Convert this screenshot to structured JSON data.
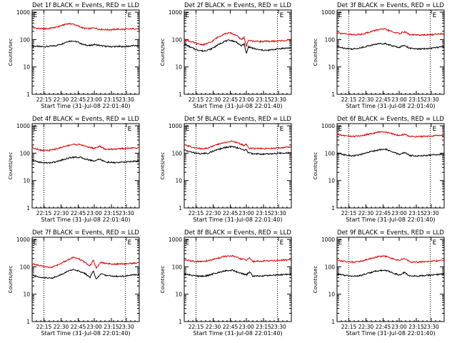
{
  "colors": {
    "events": "#000000",
    "lld": "#e00000",
    "axes": "#000000"
  },
  "common": {
    "xlabel": "Start Time (31-Jul-08 22:01:40)",
    "ylabel": "Counts/sec",
    "yticks": [
      {
        "value": 1,
        "label": "1"
      },
      {
        "value": 10,
        "label": "10"
      },
      {
        "value": 100,
        "label": "100"
      },
      {
        "value": 1000,
        "label": "1000"
      }
    ],
    "ylim": [
      1,
      1200
    ],
    "xlim": [
      0,
      100
    ],
    "markers": [
      {
        "label": "E",
        "x": 3
      },
      {
        "label": "E",
        "x": 91
      }
    ],
    "dotted_lines": [
      11,
      87
    ]
  },
  "chart_data": [
    {
      "type": "line",
      "title": "Det 1f BLACK = Events, RED = LLD",
      "xtick_labels": [
        "22:15",
        "22:30",
        "22:45",
        "23:00",
        "23:15",
        "23:30"
      ],
      "xtick_positions": [
        11,
        27,
        43,
        58,
        74,
        88
      ],
      "series": [
        {
          "key": "events",
          "x": [
            0,
            8,
            15,
            22,
            28,
            33,
            38,
            43,
            48,
            54,
            58,
            62,
            66,
            70,
            75,
            80,
            85,
            90,
            95,
            100
          ],
          "y": [
            58,
            55,
            56,
            60,
            70,
            85,
            90,
            80,
            65,
            60,
            66,
            62,
            58,
            56,
            55,
            56,
            55,
            57,
            60,
            58
          ]
        },
        {
          "key": "lld",
          "x": [
            0,
            8,
            15,
            22,
            28,
            33,
            38,
            43,
            48,
            54,
            58,
            62,
            66,
            70,
            75,
            80,
            85,
            90,
            95,
            100
          ],
          "y": [
            270,
            250,
            250,
            280,
            330,
            380,
            370,
            310,
            260,
            250,
            270,
            240,
            235,
            230,
            230,
            240,
            235,
            240,
            250,
            245
          ]
        }
      ]
    },
    {
      "type": "line",
      "title": "Det 2f BLACK = Events, RED = LLD",
      "xtick_labels": [
        "22:15",
        "22:30",
        "22:45",
        "23:00",
        "23:15",
        "23:30"
      ],
      "xtick_positions": [
        11,
        27,
        43,
        58,
        74,
        88
      ],
      "series": [
        {
          "key": "events",
          "x": [
            0,
            6,
            12,
            18,
            25,
            31,
            37,
            43,
            49,
            53,
            56,
            58,
            60,
            64,
            70,
            78,
            86,
            93,
            100
          ],
          "y": [
            70,
            52,
            42,
            38,
            45,
            62,
            85,
            95,
            80,
            58,
            70,
            30,
            55,
            48,
            42,
            40,
            45,
            48,
            50
          ]
        },
        {
          "key": "lld",
          "x": [
            0,
            6,
            12,
            18,
            25,
            31,
            37,
            43,
            49,
            53,
            56,
            58,
            60,
            64,
            70,
            78,
            86,
            93,
            100
          ],
          "y": [
            100,
            85,
            70,
            65,
            80,
            120,
            160,
            175,
            140,
            100,
            120,
            55,
            95,
            88,
            85,
            86,
            88,
            92,
            95
          ]
        }
      ]
    },
    {
      "type": "line",
      "title": "Det 3f BLACK = Events, RED = LLD",
      "xtick_labels": [
        "22:15",
        "22:30",
        "22:45",
        "23:00",
        "23:15",
        "23:30"
      ],
      "xtick_positions": [
        11,
        27,
        43,
        58,
        74,
        88
      ],
      "series": [
        {
          "key": "events",
          "x": [
            0,
            8,
            15,
            22,
            30,
            38,
            45,
            52,
            58,
            63,
            68,
            75,
            82,
            88,
            94,
            100
          ],
          "y": [
            55,
            48,
            45,
            50,
            60,
            70,
            72,
            58,
            52,
            62,
            48,
            45,
            46,
            48,
            52,
            55
          ]
        },
        {
          "key": "lld",
          "x": [
            0,
            8,
            15,
            22,
            30,
            38,
            45,
            52,
            58,
            63,
            68,
            75,
            82,
            88,
            94,
            100
          ],
          "y": [
            180,
            160,
            150,
            155,
            185,
            230,
            240,
            190,
            165,
            195,
            150,
            145,
            148,
            150,
            160,
            165
          ]
        }
      ]
    },
    {
      "type": "line",
      "title": "Det 4f BLACK = Events, RED = LLD",
      "xtick_labels": [
        "22:15",
        "22:30",
        "22:45",
        "23:00",
        "23:15",
        "23:30"
      ],
      "xtick_positions": [
        11,
        27,
        43,
        58,
        74,
        88
      ],
      "series": [
        {
          "key": "events",
          "x": [
            0,
            8,
            15,
            22,
            30,
            38,
            45,
            52,
            58,
            63,
            68,
            75,
            82,
            88,
            94,
            100
          ],
          "y": [
            55,
            46,
            44,
            48,
            60,
            72,
            70,
            58,
            52,
            62,
            48,
            45,
            46,
            48,
            50,
            52
          ]
        },
        {
          "key": "lld",
          "x": [
            0,
            8,
            15,
            22,
            30,
            38,
            45,
            52,
            58,
            63,
            68,
            75,
            82,
            88,
            94,
            100
          ],
          "y": [
            160,
            130,
            125,
            140,
            175,
            210,
            205,
            170,
            150,
            180,
            140,
            140,
            145,
            150,
            155,
            160
          ]
        }
      ]
    },
    {
      "type": "line",
      "title": "Det 5f BLACK = Events, RED = LLD",
      "xtick_labels": [
        "22:15",
        "22:30",
        "22:45",
        "23:00",
        "23:15",
        "23:30"
      ],
      "xtick_positions": [
        11,
        27,
        43,
        58,
        74,
        88
      ],
      "series": [
        {
          "key": "events",
          "x": [
            0,
            8,
            15,
            22,
            30,
            38,
            45,
            52,
            56,
            58,
            60,
            66,
            74,
            82,
            90,
            100
          ],
          "y": [
            130,
            105,
            95,
            100,
            130,
            160,
            175,
            150,
            125,
            140,
            100,
            95,
            92,
            95,
            100,
            105
          ]
        },
        {
          "key": "lld",
          "x": [
            0,
            8,
            15,
            22,
            30,
            38,
            45,
            52,
            56,
            58,
            60,
            66,
            74,
            82,
            90,
            100
          ],
          "y": [
            200,
            165,
            145,
            155,
            200,
            250,
            270,
            225,
            190,
            215,
            155,
            148,
            145,
            150,
            160,
            170
          ]
        }
      ]
    },
    {
      "type": "line",
      "title": "Det 6f BLACK = Events, RED = LLD",
      "xtick_labels": [
        "22:15",
        "22:30",
        "22:45",
        "23:00",
        "23:15",
        "23:30"
      ],
      "xtick_positions": [
        11,
        27,
        43,
        58,
        74,
        88
      ],
      "series": [
        {
          "key": "events",
          "x": [
            0,
            8,
            15,
            22,
            30,
            38,
            45,
            52,
            58,
            63,
            68,
            75,
            82,
            88,
            94,
            100
          ],
          "y": [
            100,
            85,
            80,
            88,
            110,
            130,
            140,
            110,
            90,
            105,
            82,
            80,
            82,
            85,
            90,
            92
          ]
        },
        {
          "key": "lld",
          "x": [
            0,
            8,
            15,
            22,
            30,
            38,
            45,
            52,
            58,
            63,
            68,
            75,
            82,
            88,
            94,
            100
          ],
          "y": [
            480,
            430,
            410,
            430,
            500,
            580,
            600,
            500,
            440,
            490,
            410,
            400,
            410,
            420,
            440,
            450
          ]
        }
      ]
    },
    {
      "type": "line",
      "title": "Det 7f BLACK = Events, RED = LLD",
      "xtick_labels": [
        "22:15",
        "22:30",
        "22:45",
        "23:00",
        "23:15",
        "23:30"
      ],
      "xtick_positions": [
        11,
        27,
        43,
        58,
        74,
        88
      ],
      "series": [
        {
          "key": "events",
          "x": [
            0,
            6,
            12,
            18,
            25,
            32,
            38,
            44,
            50,
            54,
            57,
            60,
            64,
            70,
            78,
            86,
            93,
            100
          ],
          "y": [
            50,
            42,
            40,
            38,
            48,
            65,
            80,
            70,
            55,
            40,
            70,
            35,
            55,
            48,
            45,
            46,
            50,
            52
          ]
        },
        {
          "key": "lld",
          "x": [
            0,
            6,
            12,
            18,
            25,
            32,
            38,
            44,
            50,
            54,
            57,
            60,
            64,
            70,
            78,
            86,
            93,
            100
          ],
          "y": [
            130,
            110,
            100,
            95,
            120,
            170,
            220,
            190,
            140,
            105,
            175,
            90,
            145,
            130,
            125,
            128,
            135,
            140
          ]
        }
      ]
    },
    {
      "type": "line",
      "title": "Det 8f BLACK = Events, RED = LLD",
      "xtick_labels": [
        "22:15",
        "22:30",
        "22:45",
        "23:00",
        "23:15",
        "23:30"
      ],
      "xtick_positions": [
        11,
        27,
        43,
        58,
        74,
        88
      ],
      "series": [
        {
          "key": "events",
          "x": [
            0,
            8,
            15,
            22,
            30,
            38,
            45,
            52,
            58,
            61,
            64,
            70,
            78,
            86,
            93,
            100
          ],
          "y": [
            55,
            48,
            45,
            48,
            60,
            72,
            75,
            60,
            50,
            65,
            45,
            46,
            48,
            50,
            52,
            55
          ]
        },
        {
          "key": "lld",
          "x": [
            0,
            8,
            15,
            22,
            30,
            38,
            45,
            52,
            58,
            61,
            64,
            70,
            78,
            86,
            93,
            100
          ],
          "y": [
            180,
            160,
            155,
            165,
            200,
            240,
            250,
            200,
            175,
            215,
            155,
            160,
            165,
            170,
            175,
            180
          ]
        }
      ]
    },
    {
      "type": "line",
      "title": "Det 9f BLACK = Events, RED = LLD",
      "xtick_labels": [
        "22:15",
        "22:30",
        "22:45",
        "23:00",
        "23:15",
        "23:30"
      ],
      "xtick_positions": [
        11,
        27,
        43,
        58,
        74,
        88
      ],
      "series": [
        {
          "key": "events",
          "x": [
            0,
            8,
            15,
            22,
            30,
            38,
            45,
            52,
            58,
            63,
            68,
            75,
            82,
            88,
            94,
            100
          ],
          "y": [
            55,
            48,
            45,
            48,
            60,
            72,
            75,
            60,
            50,
            62,
            46,
            46,
            48,
            50,
            52,
            55
          ]
        },
        {
          "key": "lld",
          "x": [
            0,
            8,
            15,
            22,
            30,
            38,
            45,
            52,
            58,
            63,
            68,
            75,
            82,
            88,
            94,
            100
          ],
          "y": [
            175,
            155,
            150,
            160,
            195,
            235,
            245,
            195,
            170,
            205,
            150,
            150,
            155,
            160,
            165,
            170
          ]
        }
      ]
    }
  ]
}
